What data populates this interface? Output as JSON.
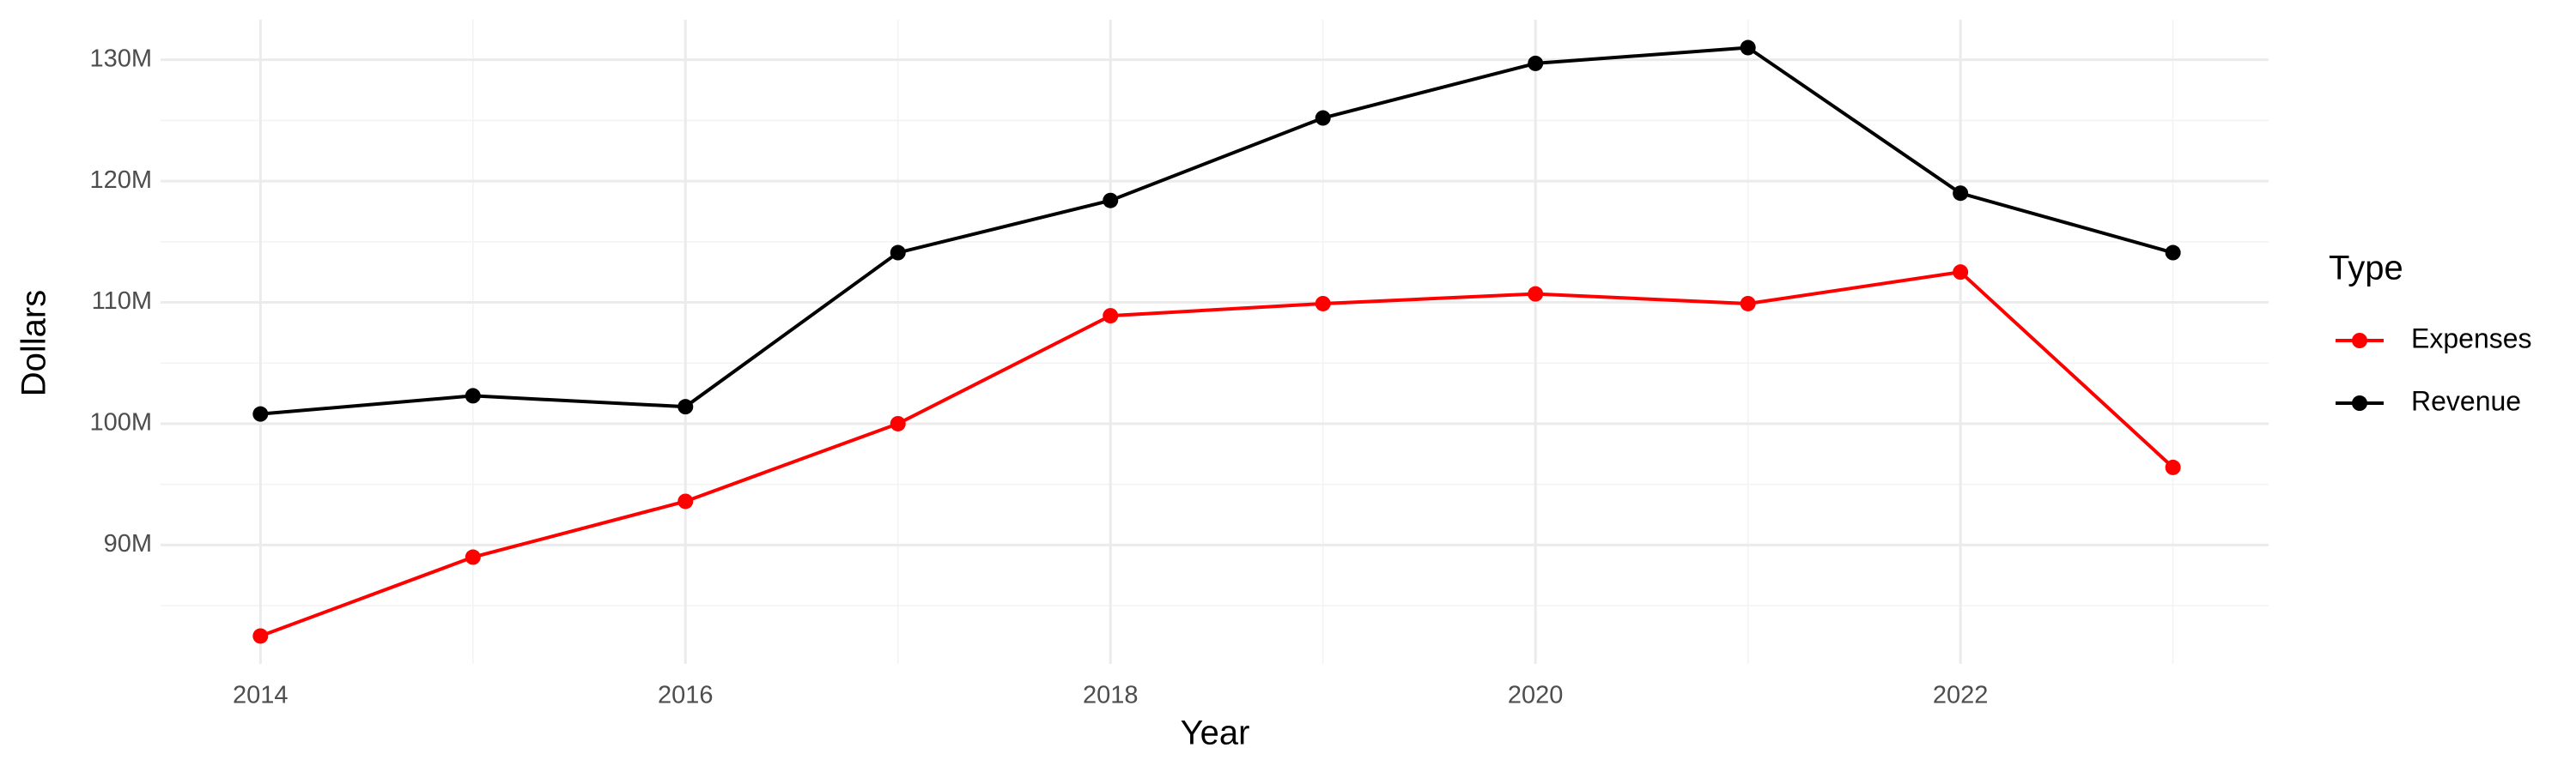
{
  "chart_data": {
    "type": "line",
    "x_label": "Year",
    "y_label": "Dollars",
    "legend_title": "Type",
    "legend_position": "right",
    "x": [
      2014,
      2015,
      2016,
      2017,
      2018,
      2019,
      2020,
      2021,
      2022,
      2023
    ],
    "series": [
      {
        "name": "Expenses",
        "color": "#ff0000",
        "values": [
          82500000,
          89000000,
          93600000,
          100000000,
          108900000,
          109900000,
          110700000,
          109900000,
          112500000,
          96400000
        ]
      },
      {
        "name": "Revenue",
        "color": "#000000",
        "values": [
          100800000,
          102300000,
          101400000,
          114100000,
          118400000,
          125200000,
          129700000,
          131000000,
          119000000,
          114100000
        ]
      }
    ],
    "xlim": [
      2013.53,
      2023.45
    ],
    "xticks": [
      2014,
      2016,
      2018,
      2020,
      2022
    ],
    "ylim": [
      80200000,
      133300000
    ],
    "yticks": [
      {
        "value": 90000000,
        "label": "90M"
      },
      {
        "value": 100000000,
        "label": "100M"
      },
      {
        "value": 110000000,
        "label": "110M"
      },
      {
        "value": 120000000,
        "label": "120M"
      },
      {
        "value": 130000000,
        "label": "130M"
      }
    ],
    "grid": true
  }
}
